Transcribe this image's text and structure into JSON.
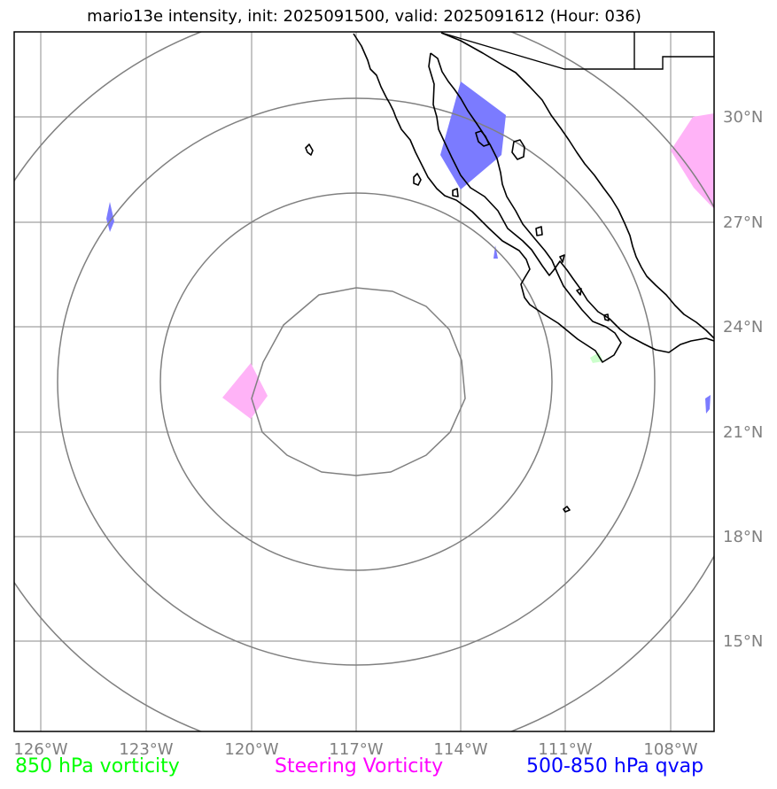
{
  "title": "mario13e intensity, init: 2025091500, valid: 2025091612 (Hour: 036)",
  "longitude_labels": [
    "126°W",
    "123°W",
    "120°W",
    "117°W",
    "114°W",
    "111°W",
    "108°W"
  ],
  "latitude_labels": [
    "30°N",
    "27°N",
    "24°N",
    "21°N",
    "18°N",
    "15°N"
  ],
  "legend": [
    {
      "label": "850 hPa vorticity",
      "color": "#00ff00"
    },
    {
      "label": "Steering Vorticity",
      "color": "#ff00ff"
    },
    {
      "label": "500-850 hPa qvap",
      "color": "#0000ff"
    }
  ],
  "colors": {
    "grid": "#a0a0a0",
    "range_rings": "#808080",
    "coastline": "#000000",
    "vorticity_850": "#00ff00",
    "steering_vorticity": "#ffb3f7",
    "qvap": "#7b7bff"
  }
}
